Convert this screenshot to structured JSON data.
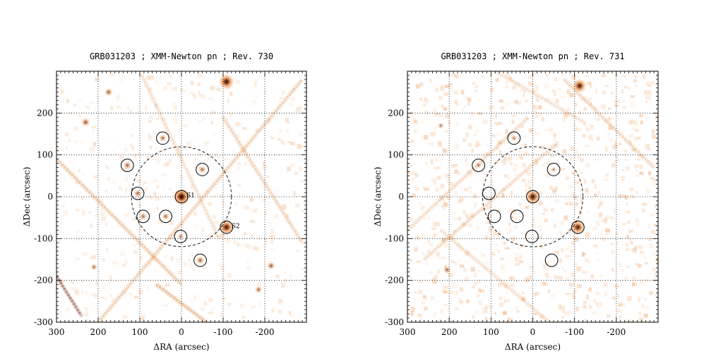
{
  "colors": {
    "halo": "#f3b27a",
    "glow": "#e9893e",
    "streak": "#d2701f",
    "core": "#160400",
    "bg": "#ffffff"
  },
  "chart_data": [
    {
      "type": "image",
      "title": "GRB031203 ; XMM-Newton pn ; Rev. 730",
      "xlabel": "ΔRA (arcsec)",
      "ylabel": "ΔDec (arcsec)",
      "xlim": [
        300,
        -300
      ],
      "ylim": [
        -300,
        300
      ],
      "xticks": [
        300,
        200,
        100,
        0,
        -100,
        -200
      ],
      "yticks": [
        -300,
        -200,
        -100,
        0,
        100,
        200
      ],
      "grid": true,
      "dashed_circle": {
        "x": 0,
        "y": 0,
        "r": 120
      },
      "sources": [
        {
          "name": "S1",
          "x": 0,
          "y": 0,
          "strength": 1.0,
          "label": "S1"
        },
        {
          "name": "S2",
          "x": -108,
          "y": -73,
          "strength": 0.85,
          "label": "S2"
        },
        {
          "name": "top",
          "x": -108,
          "y": 275,
          "strength": 0.9,
          "label": ""
        },
        {
          "x": 45,
          "y": 140,
          "strength": 0.3
        },
        {
          "x": -50,
          "y": 65,
          "strength": 0.3
        },
        {
          "x": 130,
          "y": 75,
          "strength": 0.35
        },
        {
          "x": 105,
          "y": 8,
          "strength": 0.3
        },
        {
          "x": 92,
          "y": -47,
          "strength": 0.3
        },
        {
          "x": 38,
          "y": -47,
          "strength": 0.3
        },
        {
          "x": 2,
          "y": -95,
          "strength": 0.2
        },
        {
          "x": -45,
          "y": -152,
          "strength": 0.35
        },
        {
          "x": 175,
          "y": 250,
          "strength": 0.35
        },
        {
          "x": 230,
          "y": 178,
          "strength": 0.4
        },
        {
          "x": -215,
          "y": -165,
          "strength": 0.35
        },
        {
          "x": -185,
          "y": -222,
          "strength": 0.3
        },
        {
          "x": 210,
          "y": -168,
          "strength": 0.25
        }
      ],
      "circles": [
        {
          "x": 45,
          "y": 140,
          "r": 15
        },
        {
          "x": -50,
          "y": 65,
          "r": 15
        },
        {
          "x": 130,
          "y": 75,
          "r": 15
        },
        {
          "x": 105,
          "y": 8,
          "r": 15
        },
        {
          "x": 0,
          "y": 0,
          "r": 15
        },
        {
          "x": 92,
          "y": -47,
          "r": 15
        },
        {
          "x": 38,
          "y": -47,
          "r": 15
        },
        {
          "x": -108,
          "y": -73,
          "r": 15
        },
        {
          "x": 2,
          "y": -95,
          "r": 15
        },
        {
          "x": -45,
          "y": -152,
          "r": 15
        }
      ],
      "streaks": [
        {
          "x1": 300,
          "y1": 90,
          "x2": 0,
          "y2": -210,
          "strength": 0.45
        },
        {
          "x1": 60,
          "y1": -210,
          "x2": -60,
          "y2": -300,
          "strength": 0.6
        },
        {
          "x1": 200,
          "y1": -300,
          "x2": -290,
          "y2": 280,
          "strength": 0.35
        },
        {
          "x1": 300,
          "y1": -190,
          "x2": 240,
          "y2": -285,
          "strength": 1.0
        },
        {
          "x1": -100,
          "y1": 190,
          "x2": -290,
          "y2": -110,
          "strength": 0.3
        },
        {
          "x1": 95,
          "y1": 290,
          "x2": -90,
          "y2": -100,
          "strength": 0.15
        }
      ]
    },
    {
      "type": "image",
      "title": "GRB031203 ; XMM-Newton pn ; Rev. 731",
      "xlabel": "ΔRA (arcsec)",
      "ylabel": "ΔDec (arcsec)",
      "xlim": [
        300,
        -300
      ],
      "ylim": [
        -300,
        300
      ],
      "xticks": [
        300,
        200,
        100,
        0,
        -100,
        -200
      ],
      "yticks": [
        -300,
        -200,
        -100,
        0,
        100,
        200
      ],
      "grid": true,
      "dashed_circle": {
        "x": 0,
        "y": 0,
        "r": 120
      },
      "sources": [
        {
          "name": "S1",
          "x": 0,
          "y": 0,
          "strength": 0.85,
          "label": ""
        },
        {
          "name": "S2",
          "x": -108,
          "y": -73,
          "strength": 0.8,
          "label": ""
        },
        {
          "name": "top",
          "x": -112,
          "y": 265,
          "strength": 0.8,
          "label": ""
        },
        {
          "x": 45,
          "y": 140,
          "strength": 0.2
        },
        {
          "x": 130,
          "y": 75,
          "strength": 0.2
        },
        {
          "x": -50,
          "y": 65,
          "strength": 0.15
        },
        {
          "x": 220,
          "y": 170,
          "strength": 0.2
        },
        {
          "x": 205,
          "y": -175,
          "strength": 0.3
        }
      ],
      "circles": [
        {
          "x": 45,
          "y": 140,
          "r": 15
        },
        {
          "x": -50,
          "y": 65,
          "r": 15
        },
        {
          "x": 130,
          "y": 75,
          "r": 15
        },
        {
          "x": 105,
          "y": 8,
          "r": 15
        },
        {
          "x": 0,
          "y": 0,
          "r": 15
        },
        {
          "x": 92,
          "y": -47,
          "r": 15
        },
        {
          "x": 38,
          "y": -47,
          "r": 15
        },
        {
          "x": -108,
          "y": -73,
          "r": 15
        },
        {
          "x": 2,
          "y": -95,
          "r": 15
        },
        {
          "x": -45,
          "y": -152,
          "r": 15
        }
      ],
      "streaks": [
        {
          "x1": 300,
          "y1": -80,
          "x2": 10,
          "y2": 190,
          "strength": 0.2
        },
        {
          "x1": 260,
          "y1": -150,
          "x2": -60,
          "y2": 130,
          "strength": 0.2
        },
        {
          "x1": -75,
          "y1": 280,
          "x2": -290,
          "y2": 70,
          "strength": 0.25
        },
        {
          "x1": 220,
          "y1": -80,
          "x2": -40,
          "y2": -300,
          "strength": 0.12
        },
        {
          "x1": 90,
          "y1": 300,
          "x2": -120,
          "y2": 180,
          "strength": 0.12
        }
      ]
    }
  ]
}
